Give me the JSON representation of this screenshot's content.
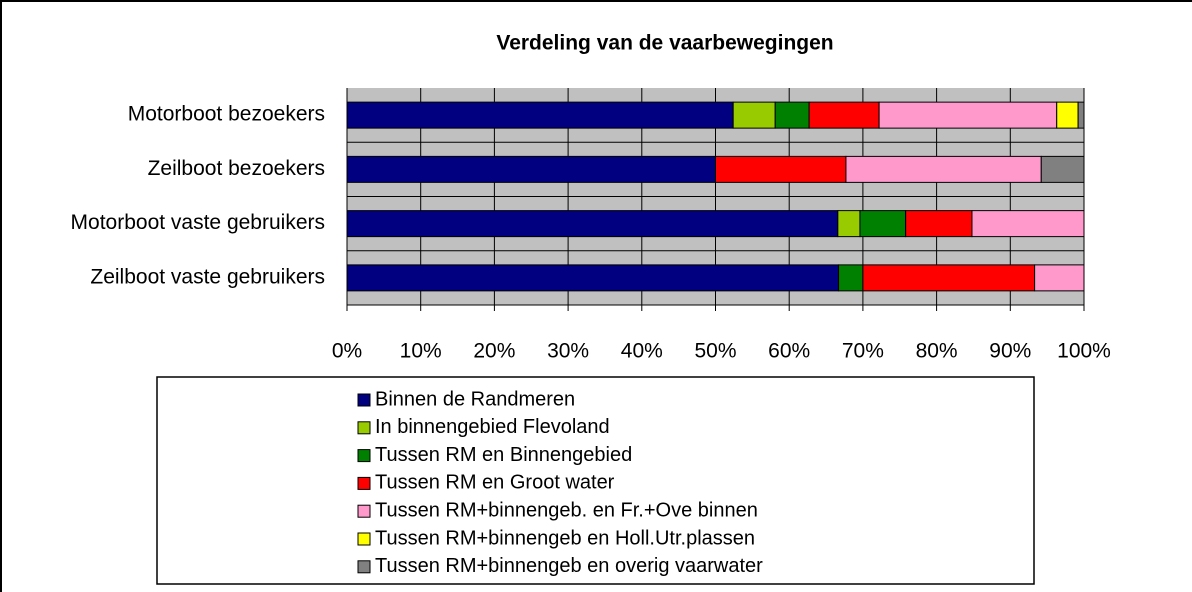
{
  "chart_data": {
    "type": "stacked-bar-horizontal",
    "title": "Verdeling van de vaarbewegingen",
    "categories": [
      "Motorboot bezoekers",
      "Zeilboot bezoekers",
      "Motorboot vaste gebruikers",
      "Zeilboot vaste gebruikers"
    ],
    "series": [
      {
        "name": "Binnen de Randmeren",
        "color": "#000080",
        "values": [
          52.4,
          50,
          66.6,
          66.7
        ]
      },
      {
        "name": "In binnengebied Flevoland",
        "color": "#99cc00",
        "values": [
          5.7,
          0,
          3.0,
          0
        ]
      },
      {
        "name": "Tussen RM en Binnengebied",
        "color": "#008000",
        "values": [
          4.6,
          0,
          6.2,
          3.3
        ]
      },
      {
        "name": "Tussen RM en Groot water",
        "color": "#ff0000",
        "values": [
          9.5,
          17.7,
          9.0,
          23.3
        ]
      },
      {
        "name": "Tussen RM+binnengeb. en Fr.+Ove binnen",
        "color": "#ff99cc",
        "values": [
          24.1,
          26.5,
          15.2,
          6.7
        ]
      },
      {
        "name": "Tussen RM+binnengeb en Holl.Utr.plassen",
        "color": "#ffff00",
        "values": [
          2.9,
          0,
          0,
          0
        ]
      },
      {
        "name": "Tussen RM+binnengeb en overig vaarwater",
        "color": "#808080",
        "values": [
          0.8,
          5.8,
          0,
          0
        ]
      }
    ],
    "xlim": [
      0,
      100
    ],
    "xticks": [
      {
        "value": 0,
        "label": "0%"
      },
      {
        "value": 10,
        "label": "10%"
      },
      {
        "value": 20,
        "label": "20%"
      },
      {
        "value": 30,
        "label": "30%"
      },
      {
        "value": 40,
        "label": "40%"
      },
      {
        "value": 50,
        "label": "50%"
      },
      {
        "value": 60,
        "label": "60%"
      },
      {
        "value": 70,
        "label": "70%"
      },
      {
        "value": 80,
        "label": "80%"
      },
      {
        "value": 90,
        "label": "90%"
      },
      {
        "value": 100,
        "label": "100%"
      }
    ],
    "grid": true
  }
}
